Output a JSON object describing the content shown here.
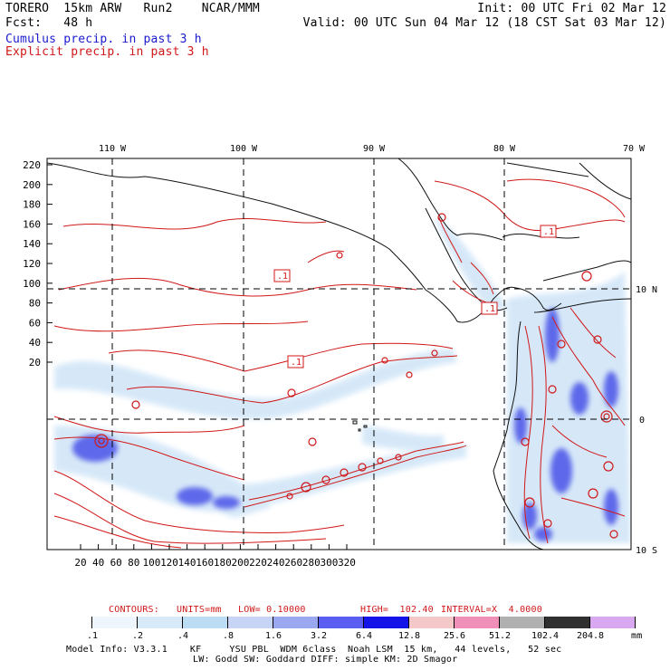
{
  "header": {
    "line1_left": "TORERO  15km ARW   Run2    NCAR/MMM",
    "line1_right": "Init: 00 UTC Fri 02 Mar 12",
    "line2_left": "Fcst:   48 h",
    "line2_right": "Valid: 00 UTC Sun 04 Mar 12 (18 CST Sat 03 Mar 12)",
    "legend_cumulus": "Cumulus precip. in past 3 h",
    "legend_explicit": "Explicit precip. in past 3 h"
  },
  "map": {
    "lon_top_labels": [
      "110 W",
      "100 W",
      "90 W",
      "80 W",
      "70 W"
    ],
    "lat_right_labels": [
      "10 N",
      "0",
      "10 S"
    ],
    "y_ticks": [
      "220",
      "200",
      "180",
      "160",
      "140",
      "120",
      "100",
      "80",
      "60",
      "40",
      "20"
    ],
    "x_ticks": [
      "20",
      "40",
      "60",
      "80",
      "100",
      "120",
      "140",
      "160",
      "180",
      "200",
      "220",
      "240",
      "260",
      "280",
      "300",
      "320"
    ],
    "contour_labels": [
      ".1",
      ".1",
      ".1",
      ".1"
    ]
  },
  "contour_info": {
    "contours": "CONTOURS:",
    "units": "UNITS=mm",
    "low": "LOW= 0.10000",
    "high": "HIGH=  102.40",
    "interval": "INTERVAL=X  4.0000"
  },
  "colorbar": {
    "labels": [
      ".1",
      ".2",
      ".4",
      ".8",
      "1.6",
      "3.2",
      "6.4",
      "12.8",
      "25.6",
      "51.2",
      "102.4",
      "204.8"
    ],
    "unit": "mm",
    "colors": [
      "#ffffff",
      "#eef5fc",
      "#d8eaf8",
      "#bcdcf4",
      "#c8d4f6",
      "#9aa8f0",
      "#5a5ef0",
      "#1414e8",
      "#f4c8c8",
      "#f090b8",
      "#b0b0b0",
      "#303030",
      "#d8a8f0"
    ]
  },
  "footer": {
    "line1": "Model Info: V3.3.1    KF     YSU PBL  WDM 6class  Noah LSM  15 km,   44 levels,   52 sec",
    "line2": "LW: Godd SW: Goddard DIFF: simple KM: 2D Smagor"
  }
}
